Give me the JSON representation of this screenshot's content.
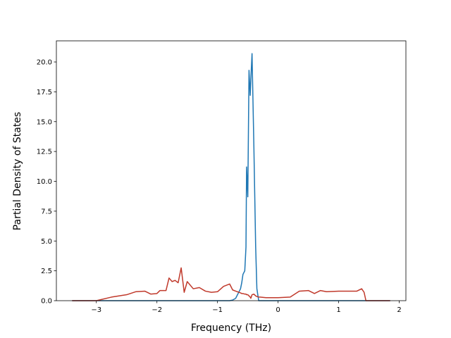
{
  "chart_data": {
    "type": "line",
    "x_label": "Frequency (THz)",
    "y_label": "Partial Density of States",
    "x": [
      -3.4,
      -3.0,
      -2.75,
      -2.5,
      -2.35,
      -2.2,
      -2.1,
      -2.0,
      -1.95,
      -1.85,
      -1.8,
      -1.75,
      -1.7,
      -1.65,
      -1.6,
      -1.55,
      -1.5,
      -1.4,
      -1.3,
      -1.2,
      -1.1,
      -1.0,
      -0.9,
      -0.8,
      -0.75,
      -0.7,
      -0.62,
      -0.6,
      -0.58,
      -0.55,
      -0.53,
      -0.52,
      -0.5,
      -0.48,
      -0.46,
      -0.45,
      -0.43,
      -0.4,
      -0.37,
      -0.35,
      -0.32,
      -0.3,
      -0.2,
      0.0,
      0.2,
      0.35,
      0.5,
      0.6,
      0.7,
      0.8,
      1.0,
      1.3,
      1.38,
      1.42,
      1.45,
      1.85
    ],
    "series": [
      {
        "color": "#1f77b4",
        "values": [
          0,
          0,
          0,
          0,
          0,
          0,
          0,
          0,
          0,
          0,
          0,
          0,
          0,
          0,
          0,
          0,
          0,
          0,
          0,
          0,
          0,
          0,
          0,
          0,
          0.05,
          0.2,
          1.0,
          1.5,
          2.2,
          2.5,
          4.5,
          11.2,
          8.7,
          19.3,
          17.2,
          18.5,
          20.7,
          13,
          4.5,
          1,
          0,
          0,
          0,
          0,
          0,
          0,
          0,
          0,
          0,
          0,
          0,
          0,
          0,
          0,
          0,
          0
        ]
      },
      {
        "color": "#c0392b",
        "values": [
          0,
          0,
          0.3,
          0.5,
          0.75,
          0.8,
          0.55,
          0.6,
          0.85,
          0.85,
          1.9,
          1.6,
          1.7,
          1.5,
          2.75,
          0.7,
          1.6,
          1.0,
          1.1,
          0.8,
          0.7,
          0.75,
          1.2,
          1.4,
          0.9,
          0.8,
          0.65,
          0.6,
          0.6,
          0.55,
          0.55,
          0.5,
          0.5,
          0.4,
          0.3,
          0.2,
          0.5,
          0.55,
          0.4,
          0.35,
          0.3,
          0.3,
          0.25,
          0.25,
          0.3,
          0.8,
          0.85,
          0.6,
          0.85,
          0.75,
          0.8,
          0.8,
          1.0,
          0.7,
          0,
          0
        ]
      }
    ],
    "xlim": [
      -3.66,
      2.11
    ],
    "xticks": [
      {
        "value": -3,
        "label": "−3"
      },
      {
        "value": -2,
        "label": "−2"
      },
      {
        "value": -1,
        "label": "−1"
      },
      0,
      1,
      2
    ],
    "ylim": [
      0,
      21.77
    ],
    "yticks": [
      {
        "value": 0,
        "label": "0.0"
      },
      2.5,
      {
        "value": 5,
        "label": "5.0"
      },
      7.5,
      {
        "value": 10,
        "label": "10.0"
      },
      12.5,
      {
        "value": 15,
        "label": "15.0"
      },
      17.5,
      {
        "value": 20,
        "label": "20.0"
      }
    ]
  }
}
